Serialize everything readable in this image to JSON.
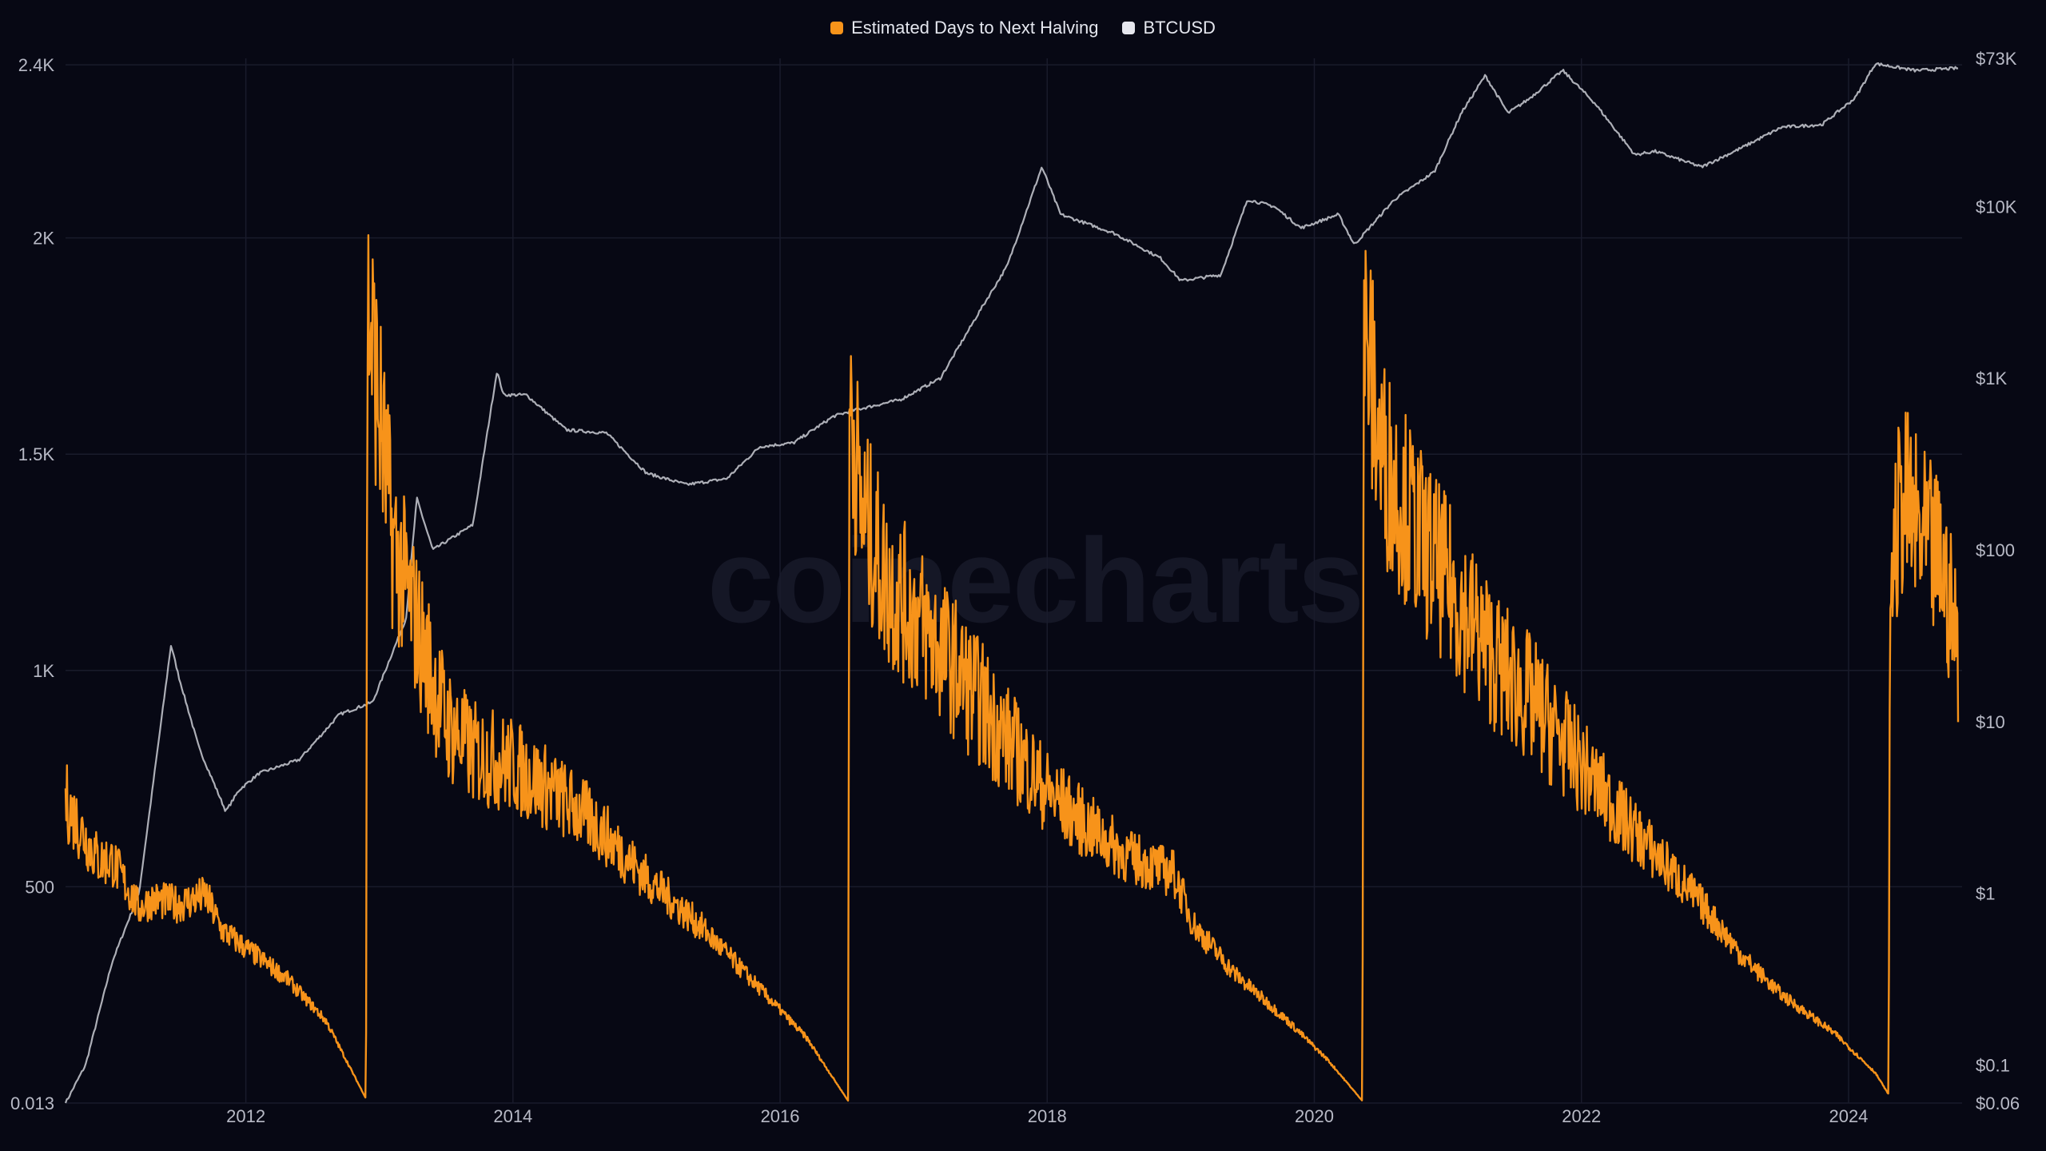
{
  "legend": {
    "series1_label": "Estimated Days to Next Halving",
    "series1_color": "#f7931a",
    "series2_label": "BTCUSD",
    "series2_color": "#e6e7ee"
  },
  "watermark": "coinecharts",
  "chart_data": {
    "type": "line",
    "title": "",
    "x_range": [
      2010.65,
      2024.85
    ],
    "x_ticks": [
      "2012",
      "2014",
      "2016",
      "2018",
      "2020",
      "2022",
      "2024"
    ],
    "x_tick_values": [
      2012,
      2014,
      2016,
      2018,
      2020,
      2022,
      2024
    ],
    "y_left": {
      "scale": "custom",
      "range": [
        0,
        2415
      ],
      "tick_labels": [
        "0.013",
        "500",
        "1K",
        "1.5K",
        "2K",
        "2.4K"
      ],
      "tick_values": [
        0,
        500,
        1000,
        1500,
        2000,
        2400
      ]
    },
    "y_right": {
      "scale": "log",
      "range": [
        0.06,
        73000
      ],
      "tick_labels": [
        "$0.06",
        "$0.1",
        "$1",
        "$10",
        "$100",
        "$1K",
        "$10K",
        "$73K"
      ],
      "tick_values": [
        0.06,
        0.1,
        1,
        10,
        100,
        1000,
        10000,
        73000
      ]
    },
    "grid": true,
    "legend_position": "top-center",
    "series": [
      {
        "name": "Estimated Days to Next Halving",
        "axis": "left",
        "color": "#f7931a",
        "noise": 0.12,
        "x": [
          2010.65,
          2010.75,
          2010.9,
          2011.0,
          2011.2,
          2011.3,
          2011.5,
          2011.7,
          2011.82,
          2011.95,
          2012.3,
          2012.6,
          2012.9,
          2012.91,
          2012.95,
          2013.1,
          2013.3,
          2013.5,
          2013.7,
          2014.0,
          2014.3,
          2014.6,
          2015.0,
          2015.4,
          2015.8,
          2016.2,
          2016.51,
          2016.52,
          2016.6,
          2016.8,
          2017.0,
          2017.3,
          2017.6,
          2017.85,
          2018.0,
          2018.3,
          2018.6,
          2018.95,
          2019.1,
          2019.4,
          2019.8,
          2020.1,
          2020.36,
          2020.37,
          2020.5,
          2020.8,
          2021.1,
          2021.4,
          2021.6,
          2021.8,
          2022.0,
          2022.3,
          2022.6,
          2022.9,
          2023.2,
          2023.5,
          2023.9,
          2024.2,
          2024.3,
          2024.31,
          2024.4,
          2024.55,
          2024.7,
          2024.82
        ],
        "y": [
          700,
          640,
          560,
          560,
          450,
          470,
          460,
          480,
          400,
          370,
          290,
          190,
          10,
          1850,
          1750,
          1300,
          1080,
          880,
          810,
          780,
          720,
          650,
          520,
          410,
          280,
          150,
          5,
          1670,
          1380,
          1200,
          1130,
          1010,
          880,
          780,
          720,
          640,
          570,
          530,
          410,
          300,
          190,
          100,
          5,
          1800,
          1500,
          1300,
          1150,
          1000,
          940,
          860,
          780,
          660,
          560,
          460,
          340,
          250,
          160,
          70,
          20,
          1200,
          1400,
          1300,
          1240,
          1050
        ]
      },
      {
        "name": "BTCUSD",
        "axis": "right",
        "color": "#e6e7ee",
        "noise": 0.02,
        "x": [
          2010.65,
          2010.8,
          2011.0,
          2011.2,
          2011.35,
          2011.44,
          2011.5,
          2011.65,
          2011.85,
          2011.95,
          2012.1,
          2012.4,
          2012.7,
          2012.95,
          2013.2,
          2013.28,
          2013.4,
          2013.7,
          2013.88,
          2013.93,
          2014.1,
          2014.4,
          2014.7,
          2015.0,
          2015.3,
          2015.6,
          2015.85,
          2016.1,
          2016.4,
          2016.55,
          2016.9,
          2017.2,
          2017.5,
          2017.7,
          2017.96,
          2018.1,
          2018.5,
          2018.85,
          2019.0,
          2019.3,
          2019.5,
          2019.7,
          2019.9,
          2020.18,
          2020.3,
          2020.6,
          2020.9,
          2021.1,
          2021.28,
          2021.45,
          2021.6,
          2021.86,
          2022.1,
          2022.4,
          2022.55,
          2022.9,
          2023.2,
          2023.5,
          2023.8,
          2024.05,
          2024.2,
          2024.5,
          2024.82
        ],
        "y": [
          0.06,
          0.1,
          0.4,
          1,
          8,
          28,
          18,
          7,
          3,
          4,
          5,
          6,
          11,
          13,
          40,
          200,
          100,
          140,
          1100,
          800,
          800,
          500,
          480,
          280,
          240,
          260,
          400,
          420,
          600,
          650,
          750,
          1000,
          2500,
          4500,
          17000,
          9000,
          7000,
          5000,
          3700,
          4000,
          11000,
          10000,
          7500,
          9000,
          6000,
          11000,
          16000,
          35000,
          58000,
          35000,
          42000,
          62000,
          40000,
          20000,
          21000,
          17000,
          22000,
          29000,
          30000,
          43000,
          68000,
          62000,
          64000
        ]
      }
    ]
  }
}
